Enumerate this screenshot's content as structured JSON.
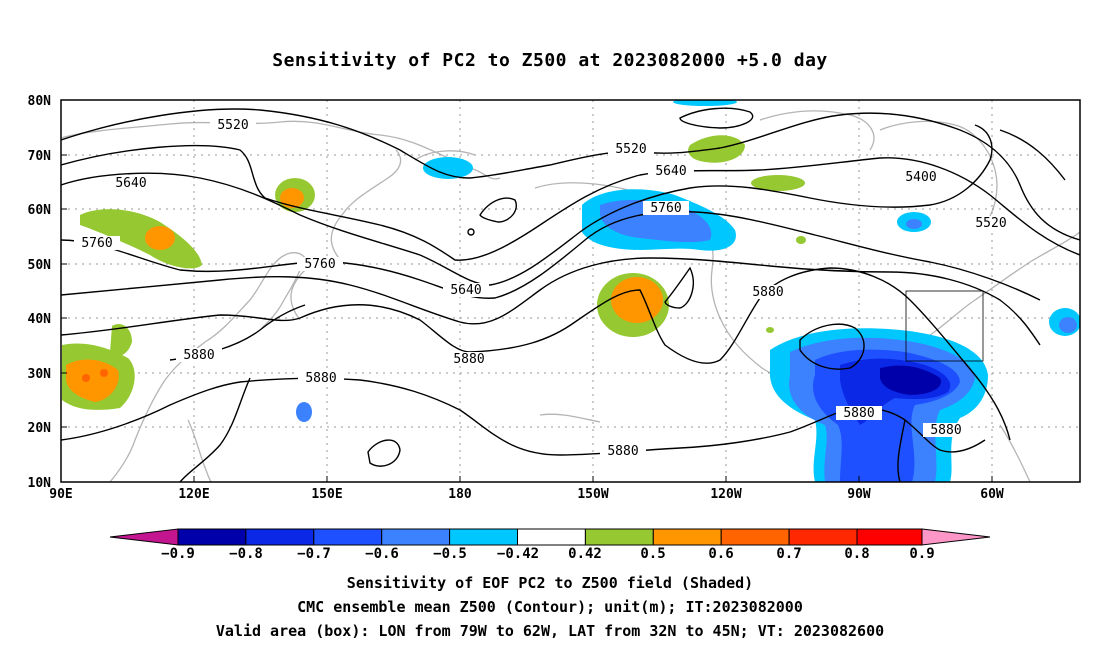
{
  "title": "Sensitivity of PC2 to Z500 at 2023082000 +5.0 day",
  "lat_labels": [
    "80N",
    "70N",
    "60N",
    "50N",
    "40N",
    "30N",
    "20N",
    "10N"
  ],
  "lon_labels": [
    "90E",
    "120E",
    "150E",
    "180",
    "150W",
    "120W",
    "90W",
    "60W"
  ],
  "contour_labels": [
    {
      "text": "5520",
      "k": "a"
    },
    {
      "text": "5520",
      "k": "b"
    },
    {
      "text": "5520",
      "k": "c"
    },
    {
      "text": "5400",
      "k": "d"
    },
    {
      "text": "5640",
      "k": "e"
    },
    {
      "text": "5640",
      "k": "f"
    },
    {
      "text": "5640",
      "k": "g"
    },
    {
      "text": "5760",
      "k": "h"
    },
    {
      "text": "5760",
      "k": "i"
    },
    {
      "text": "5760",
      "k": "j"
    },
    {
      "text": "5880",
      "k": "k"
    },
    {
      "text": "5880",
      "k": "l"
    },
    {
      "text": "5880",
      "k": "m"
    },
    {
      "text": "5880",
      "k": "n"
    },
    {
      "text": "5880",
      "k": "o"
    },
    {
      "text": "5880",
      "k": "p"
    },
    {
      "text": "5880",
      "k": "q"
    }
  ],
  "colorbar": {
    "labels": [
      "−0.9",
      "−0.8",
      "−0.7",
      "−0.6",
      "−0.5",
      "−0.42",
      "0.42",
      "0.5",
      "0.6",
      "0.7",
      "0.8",
      "0.9"
    ],
    "colors": [
      "#c41590",
      "#0000aa",
      "#0a28e6",
      "#1e50ff",
      "#3c82ff",
      "#00c8ff",
      "#ffffff",
      "#96c832",
      "#ff9600",
      "#ff6400",
      "#ff2800",
      "#ff0000",
      "#ff96c8"
    ]
  },
  "footer": {
    "line1": "Sensitivity of EOF PC2 to Z500 field (Shaded)",
    "line2": "CMC ensemble mean Z500 (Contour); unit(m); IT:2023082000",
    "line3": "Valid area (box): LON from 79W to 62W, LAT from 32N to 45N; VT: 2023082600"
  }
}
